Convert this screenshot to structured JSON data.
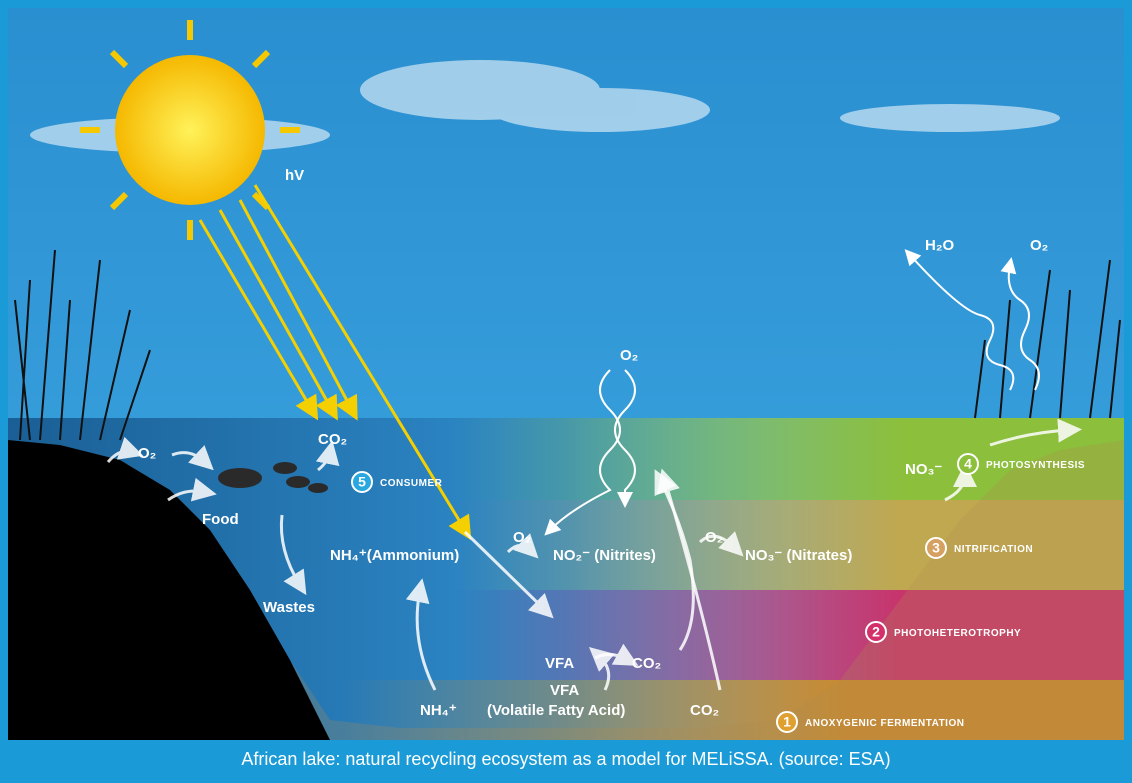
{
  "labels": {
    "hv": "hV",
    "o2_left": "O₂",
    "co2_fish": "CO₂",
    "food": "Food",
    "wastes": "Wastes",
    "ammonium": "NH₄⁺(Ammonium)",
    "o2_a": "O₂",
    "nitrites": "NO₂⁻ (Nitrites)",
    "o2_b": "O₂",
    "nitrates": "NO₃⁻ (Nitrates)",
    "o2_top": "O₂",
    "vfa": "VFA",
    "co2_vfa": "CO₂",
    "vfa_bottom": "VFA",
    "vfa_full": "(Volatile Fatty Acid)",
    "nh4_bottom": "NH₄⁺",
    "co2_bottom": "CO₂",
    "no3": "NO₃⁻",
    "h2o": "H₂O",
    "o2_right": "O₂"
  },
  "zones": [
    {
      "number": "5",
      "name": "CONSUMER"
    },
    {
      "number": "4",
      "name": "PHOTOSYNTHESIS"
    },
    {
      "number": "3",
      "name": "NITRIFICATION"
    },
    {
      "number": "2",
      "name": "PHOTOHETEROTROPHY"
    },
    {
      "number": "1",
      "name": "ANOXYGENIC FERMENTATION"
    }
  ],
  "caption": "African lake: natural recycling ecosystem as a model for MELiSSA. (source: ESA)"
}
